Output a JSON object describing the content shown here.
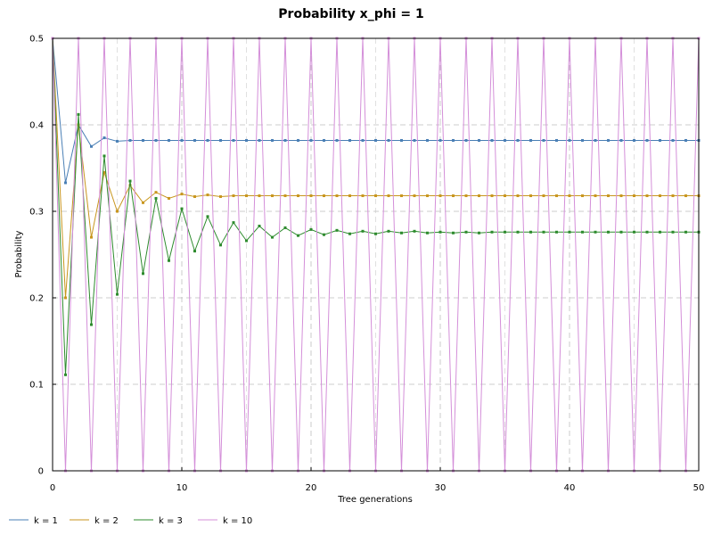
{
  "chart_data": {
    "type": "line",
    "title": "Probability x_phi = 1",
    "xlabel": "Tree generations",
    "ylabel": "Probability",
    "xlim": [
      0,
      50
    ],
    "ylim": [
      0,
      0.5
    ],
    "xticks": [
      "0",
      "10",
      "20",
      "30",
      "40",
      "50"
    ],
    "yticks": [
      "0",
      "0.1",
      "0.2",
      "0.3",
      "0.4",
      "0.5"
    ],
    "grid": true,
    "legend_position": "bottom-left",
    "x": [
      0,
      1,
      2,
      3,
      4,
      5,
      6,
      7,
      8,
      9,
      10,
      11,
      12,
      13,
      14,
      15,
      16,
      17,
      18,
      19,
      20,
      21,
      22,
      23,
      24,
      25,
      26,
      27,
      28,
      29,
      30,
      31,
      32,
      33,
      34,
      35,
      36,
      37,
      38,
      39,
      40,
      41,
      42,
      43,
      44,
      45,
      46,
      47,
      48,
      49,
      50
    ],
    "series": [
      {
        "name": "k = 1",
        "color": "#4a7fb5",
        "values": [
          0.5,
          0.333,
          0.4,
          0.375,
          0.385,
          0.381,
          0.382,
          0.382,
          0.382,
          0.382,
          0.382,
          0.382,
          0.382,
          0.382,
          0.382,
          0.382,
          0.382,
          0.382,
          0.382,
          0.382,
          0.382,
          0.382,
          0.382,
          0.382,
          0.382,
          0.382,
          0.382,
          0.382,
          0.382,
          0.382,
          0.382,
          0.382,
          0.382,
          0.382,
          0.382,
          0.382,
          0.382,
          0.382,
          0.382,
          0.382,
          0.382,
          0.382,
          0.382,
          0.382,
          0.382,
          0.382,
          0.382,
          0.382,
          0.382,
          0.382,
          0.382
        ]
      },
      {
        "name": "k = 2",
        "color": "#c8961e",
        "values": [
          0.5,
          0.2,
          0.4,
          0.27,
          0.345,
          0.3,
          0.33,
          0.31,
          0.322,
          0.315,
          0.32,
          0.317,
          0.319,
          0.317,
          0.318,
          0.318,
          0.318,
          0.318,
          0.318,
          0.318,
          0.318,
          0.318,
          0.318,
          0.318,
          0.318,
          0.318,
          0.318,
          0.318,
          0.318,
          0.318,
          0.318,
          0.318,
          0.318,
          0.318,
          0.318,
          0.318,
          0.318,
          0.318,
          0.318,
          0.318,
          0.318,
          0.318,
          0.318,
          0.318,
          0.318,
          0.318,
          0.318,
          0.318,
          0.318,
          0.318,
          0.318
        ]
      },
      {
        "name": "k = 3",
        "color": "#2e8b2e",
        "values": [
          0.5,
          0.111,
          0.412,
          0.169,
          0.364,
          0.204,
          0.335,
          0.228,
          0.315,
          0.243,
          0.303,
          0.254,
          0.294,
          0.261,
          0.287,
          0.266,
          0.283,
          0.27,
          0.281,
          0.272,
          0.279,
          0.273,
          0.278,
          0.274,
          0.277,
          0.274,
          0.277,
          0.275,
          0.277,
          0.275,
          0.276,
          0.275,
          0.276,
          0.275,
          0.276,
          0.276,
          0.276,
          0.276,
          0.276,
          0.276,
          0.276,
          0.276,
          0.276,
          0.276,
          0.276,
          0.276,
          0.276,
          0.276,
          0.276,
          0.276,
          0.276
        ]
      },
      {
        "name": "k = 10",
        "color": "#d48fd9",
        "values": [
          0.5,
          0,
          0.5,
          0,
          0.5,
          0,
          0.5,
          0,
          0.5,
          0,
          0.5,
          0,
          0.5,
          0,
          0.5,
          0,
          0.5,
          0,
          0.5,
          0,
          0.5,
          0,
          0.5,
          0,
          0.5,
          0,
          0.5,
          0,
          0.5,
          0,
          0.5,
          0,
          0.5,
          0,
          0.5,
          0,
          0.5,
          0,
          0.5,
          0,
          0.5,
          0,
          0.5,
          0,
          0.5,
          0,
          0.5,
          0,
          0.5,
          0,
          0.5
        ]
      }
    ]
  }
}
